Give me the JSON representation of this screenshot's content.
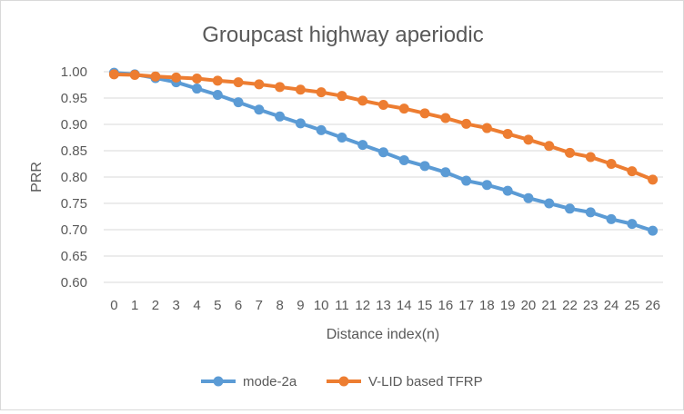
{
  "chart_data": {
    "type": "line",
    "title": "Groupcast highway aperiodic",
    "xlabel": "Distance index(n)",
    "ylabel": "PRR",
    "categories": [
      "0",
      "1",
      "2",
      "3",
      "4",
      "5",
      "6",
      "7",
      "8",
      "9",
      "10",
      "11",
      "12",
      "13",
      "14",
      "15",
      "16",
      "17",
      "18",
      "19",
      "20",
      "21",
      "22",
      "23",
      "24",
      "25",
      "26"
    ],
    "ylim": [
      0.6,
      1.0
    ],
    "yticks": [
      "0.60",
      "0.65",
      "0.70",
      "0.75",
      "0.80",
      "0.85",
      "0.90",
      "0.95",
      "1.00"
    ],
    "grid": true,
    "legend_position": "bottom",
    "series": [
      {
        "name": "mode-2a",
        "color": "#5b9bd5",
        "values": [
          0.998,
          0.995,
          0.988,
          0.98,
          0.968,
          0.956,
          0.942,
          0.928,
          0.915,
          0.902,
          0.889,
          0.875,
          0.861,
          0.847,
          0.832,
          0.821,
          0.809,
          0.793,
          0.785,
          0.774,
          0.76,
          0.75,
          0.74,
          0.733,
          0.72,
          0.711,
          0.698
        ]
      },
      {
        "name": "V-LID based TFRP",
        "color": "#ed7d31",
        "values": [
          0.995,
          0.994,
          0.991,
          0.989,
          0.987,
          0.983,
          0.98,
          0.976,
          0.971,
          0.966,
          0.961,
          0.954,
          0.945,
          0.937,
          0.93,
          0.921,
          0.912,
          0.901,
          0.893,
          0.882,
          0.871,
          0.859,
          0.846,
          0.838,
          0.825,
          0.811,
          0.795
        ]
      }
    ]
  }
}
